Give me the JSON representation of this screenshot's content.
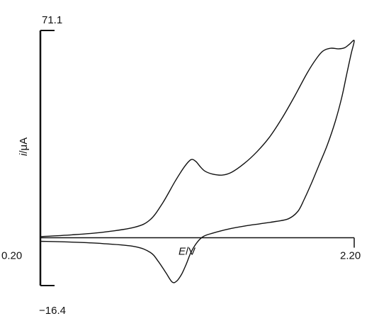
{
  "chart_data": {
    "type": "line",
    "title": "",
    "xlabel_italic": "E",
    "xlabel_rest": "/V",
    "ylabel_italic": "i",
    "ylabel_rest": "/μA",
    "xlim": [
      0.2,
      2.2
    ],
    "ylim": [
      -16.4,
      71.1
    ],
    "x_tick_labels": {
      "min": "0.20",
      "max": "2.20"
    },
    "y_tick_labels": {
      "max": "71.1",
      "min": "−16.4"
    },
    "grid": false,
    "series": [
      {
        "trace": "cyclic voltammogram",
        "x": [
          0.2,
          0.4,
          0.6,
          0.8,
          0.9,
          0.98,
          1.06,
          1.12,
          1.16,
          1.19,
          1.22,
          1.25,
          1.3,
          1.36,
          1.42,
          1.5,
          1.58,
          1.66,
          1.74,
          1.82,
          1.9,
          1.96,
          2.0,
          2.05,
          2.1,
          2.14,
          2.17,
          2.2,
          2.18,
          2.15,
          2.12,
          2.08,
          2.03,
          1.98,
          1.93,
          1.88,
          1.84,
          1.78,
          1.7,
          1.6,
          1.5,
          1.4,
          1.3,
          1.24,
          1.2,
          1.16,
          1.13,
          1.1,
          1.07,
          1.04,
          1.0,
          0.95,
          0.9,
          0.8,
          0.6,
          0.4,
          0.2
        ],
        "y": [
          0.4,
          1.0,
          1.9,
          3.6,
          6.2,
          12.0,
          19.5,
          24.5,
          26.8,
          26.2,
          24.3,
          22.8,
          21.8,
          21.5,
          22.5,
          25.5,
          29.5,
          34.5,
          41.0,
          48.5,
          56.5,
          61.5,
          64.0,
          65.0,
          64.8,
          65.2,
          66.4,
          67.6,
          63.0,
          55.5,
          48.0,
          40.0,
          32.0,
          25.5,
          19.0,
          13.0,
          9.0,
          6.5,
          5.6,
          4.8,
          4.0,
          3.0,
          1.6,
          0.5,
          -1.5,
          -5.0,
          -9.0,
          -12.5,
          -14.8,
          -15.2,
          -12.0,
          -8.0,
          -5.0,
          -3.0,
          -2.0,
          -1.5,
          -1.2
        ]
      }
    ]
  }
}
